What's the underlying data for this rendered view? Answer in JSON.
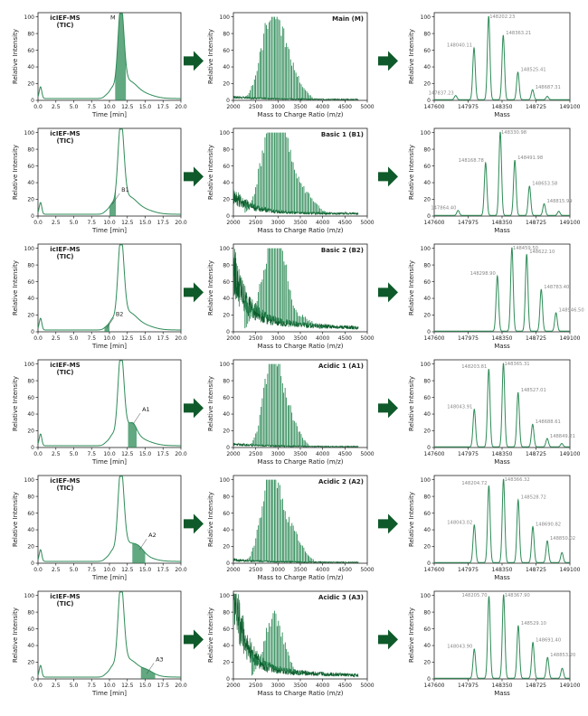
{
  "colors": {
    "trace": "#2e8b57",
    "trace_dark": "#0b5e2c",
    "fill": "#2e8b57",
    "arrow": "#0f5a2a",
    "axis": "#222222",
    "peak_label": "#888888"
  },
  "chart_data": [
    {
      "row": 0,
      "tic": {
        "type": "line",
        "title": "icIEF-MS",
        "subtitle": "(TIC)",
        "xlabel": "Time [min]",
        "ylabel": "Relative Intensity",
        "x_ticks": [
          "0.0",
          "2.5",
          "5.0",
          "7.5",
          "10.0",
          "12.5",
          "15.0",
          "17.5",
          "20.0"
        ],
        "y_ticks": [
          "0",
          "20",
          "40",
          "60",
          "80",
          "100"
        ],
        "xlim": [
          0,
          20
        ],
        "ylim": [
          0,
          105
        ],
        "marker_label": "M",
        "marker_x": 11.6,
        "marker_y": 100,
        "shade": [
          10.8,
          12.3
        ]
      },
      "ms": {
        "type": "line",
        "title": "Main (M)",
        "xlabel": "Mass to Charge Ratio (m/z)",
        "ylabel": "Relative Intensity",
        "x_ticks": [
          "2000",
          "2500",
          "3000",
          "3500",
          "4000",
          "4500",
          "5000"
        ],
        "y_ticks": [
          "0",
          "20",
          "40",
          "60",
          "80",
          "100"
        ],
        "xlim": [
          2000,
          5000
        ],
        "ylim": [
          0,
          105
        ],
        "profile": "main"
      },
      "deconv": {
        "type": "line",
        "xlabel": "Mass",
        "ylabel": "Relative Intensity",
        "x_ticks": [
          "147600",
          "147975",
          "148350",
          "148725",
          "149100"
        ],
        "y_ticks": [
          "0",
          "20",
          "40",
          "60",
          "80",
          "100"
        ],
        "xlim": [
          147600,
          149100
        ],
        "ylim": [
          0,
          105
        ],
        "peaks": [
          {
            "mass": 147837,
            "label": "147837.23",
            "y": 5
          },
          {
            "mass": 148040,
            "label": "148040.11",
            "y": 62
          },
          {
            "mass": 148202,
            "label": "148202.23",
            "y": 100
          },
          {
            "mass": 148363,
            "label": "148363.21",
            "y": 77
          },
          {
            "mass": 148525,
            "label": "148525.41",
            "y": 33
          },
          {
            "mass": 148687,
            "label": "148687.31",
            "y": 12
          },
          {
            "mass": 148850,
            "label": "",
            "y": 4
          }
        ]
      }
    },
    {
      "row": 1,
      "tic": {
        "type": "line",
        "title": "icIEF-MS",
        "subtitle": "(TIC)",
        "xlabel": "Time [min]",
        "ylabel": "Relative Intensity",
        "x_ticks": [
          "0.0",
          "2.5",
          "5.0",
          "7.5",
          "10.0",
          "12.5",
          "15.0",
          "17.5",
          "20.0"
        ],
        "y_ticks": [
          "0",
          "20",
          "40",
          "60",
          "80",
          "100"
        ],
        "xlim": [
          0,
          20
        ],
        "ylim": [
          0,
          105
        ],
        "marker_label": "B1",
        "marker_x": 10.4,
        "marker_y": 14,
        "shade": [
          10.0,
          10.9
        ]
      },
      "ms": {
        "type": "line",
        "title": "Basic 1 (B1)",
        "xlabel": "Mass to Charge Ratio (m/z)",
        "ylabel": "Relative Intensity",
        "x_ticks": [
          "2000",
          "2500",
          "3000",
          "3500",
          "4000",
          "4500",
          "5000"
        ],
        "y_ticks": [
          "0",
          "20",
          "40",
          "60",
          "80",
          "100"
        ],
        "xlim": [
          2000,
          5000
        ],
        "ylim": [
          0,
          105
        ],
        "profile": "basic1"
      },
      "deconv": {
        "type": "line",
        "xlabel": "Mass",
        "ylabel": "Relative Intensity",
        "x_ticks": [
          "147600",
          "147975",
          "148350",
          "148725",
          "149100"
        ],
        "y_ticks": [
          "0",
          "20",
          "40",
          "60",
          "80",
          "100"
        ],
        "xlim": [
          147600,
          149100
        ],
        "ylim": [
          0,
          105
        ],
        "peaks": [
          {
            "mass": 147864,
            "label": "147864.40",
            "y": 6
          },
          {
            "mass": 148168,
            "label": "148168.78",
            "y": 63
          },
          {
            "mass": 148330,
            "label": "148330.98",
            "y": 100
          },
          {
            "mass": 148491,
            "label": "148491.98",
            "y": 66
          },
          {
            "mass": 148653,
            "label": "148653.58",
            "y": 35
          },
          {
            "mass": 148815,
            "label": "148815.99",
            "y": 14
          },
          {
            "mass": 148977,
            "label": "",
            "y": 5
          }
        ]
      }
    },
    {
      "row": 2,
      "tic": {
        "type": "line",
        "title": "icIEF-MS",
        "subtitle": "(TIC)",
        "xlabel": "Time [min]",
        "ylabel": "Relative Intensity",
        "x_ticks": [
          "0.0",
          "2.5",
          "5.0",
          "7.5",
          "10.0",
          "12.5",
          "15.0",
          "17.5",
          "20.0"
        ],
        "y_ticks": [
          "0",
          "20",
          "40",
          "60",
          "80",
          "100"
        ],
        "xlim": [
          0,
          20
        ],
        "ylim": [
          0,
          105
        ],
        "marker_label": "B2",
        "marker_x": 9.6,
        "marker_y": 4,
        "shade": [
          9.3,
          10.0
        ]
      },
      "ms": {
        "type": "line",
        "title": "Basic 2 (B2)",
        "xlabel": "Mass to Charge Ratio (m/z)",
        "ylabel": "Relative Intensity",
        "x_ticks": [
          "2000",
          "2500",
          "3000",
          "3500",
          "4000",
          "4500",
          "5000"
        ],
        "y_ticks": [
          "0",
          "20",
          "40",
          "60",
          "80",
          "100"
        ],
        "xlim": [
          2000,
          5000
        ],
        "ylim": [
          0,
          105
        ],
        "profile": "basic2"
      },
      "deconv": {
        "type": "line",
        "xlabel": "Mass",
        "ylabel": "Relative Intensity",
        "x_ticks": [
          "147600",
          "147975",
          "148350",
          "148725",
          "149100"
        ],
        "y_ticks": [
          "0",
          "20",
          "40",
          "60",
          "80",
          "100"
        ],
        "xlim": [
          147600,
          149100
        ],
        "ylim": [
          0,
          105
        ],
        "peaks": [
          {
            "mass": 148298,
            "label": "148298.90",
            "y": 66
          },
          {
            "mass": 148459,
            "label": "148459.50",
            "y": 100
          },
          {
            "mass": 148622,
            "label": "148622.10",
            "y": 92
          },
          {
            "mass": 148783,
            "label": "148783.40",
            "y": 50
          },
          {
            "mass": 148946,
            "label": "148946.50",
            "y": 22
          }
        ]
      }
    },
    {
      "row": 3,
      "tic": {
        "type": "line",
        "title": "icIEF-MS",
        "subtitle": "(TIC)",
        "xlabel": "Time [min]",
        "ylabel": "Relative Intensity",
        "x_ticks": [
          "0.0",
          "2.5",
          "5.0",
          "7.5",
          "10.0",
          "12.5",
          "15.0",
          "17.5",
          "20.0"
        ],
        "y_ticks": [
          "0",
          "20",
          "40",
          "60",
          "80",
          "100"
        ],
        "xlim": [
          0,
          20
        ],
        "ylim": [
          0,
          105
        ],
        "marker_label": "A1",
        "marker_x": 13.3,
        "marker_y": 28,
        "shade": [
          12.6,
          13.8
        ]
      },
      "ms": {
        "type": "line",
        "title": "Acidic 1 (A1)",
        "xlabel": "Mass to Charge Ratio (m/z)",
        "ylabel": "Relative Intensity",
        "x_ticks": [
          "2000",
          "2500",
          "3000",
          "3500",
          "4000",
          "4500",
          "5000"
        ],
        "y_ticks": [
          "0",
          "20",
          "40",
          "60",
          "80",
          "100"
        ],
        "xlim": [
          2000,
          5000
        ],
        "ylim": [
          0,
          105
        ],
        "profile": "acidic1"
      },
      "deconv": {
        "type": "line",
        "xlabel": "Mass",
        "ylabel": "Relative Intensity",
        "x_ticks": [
          "147600",
          "147975",
          "148350",
          "148725",
          "149100"
        ],
        "y_ticks": [
          "0",
          "20",
          "40",
          "60",
          "80",
          "100"
        ],
        "xlim": [
          147600,
          149100
        ],
        "ylim": [
          0,
          105
        ],
        "peaks": [
          {
            "mass": 148043,
            "label": "148043.91",
            "y": 45
          },
          {
            "mass": 148203,
            "label": "148203.81",
            "y": 93
          },
          {
            "mass": 148365,
            "label": "148365.31",
            "y": 100
          },
          {
            "mass": 148527,
            "label": "148527.01",
            "y": 65
          },
          {
            "mass": 148688,
            "label": "148688.61",
            "y": 27
          },
          {
            "mass": 148849,
            "label": "148849.21",
            "y": 10
          },
          {
            "mass": 149010,
            "label": "",
            "y": 4
          }
        ]
      }
    },
    {
      "row": 4,
      "tic": {
        "type": "line",
        "title": "icIEF-MS",
        "subtitle": "(TIC)",
        "xlabel": "Time [min]",
        "ylabel": "Relative Intensity",
        "x_ticks": [
          "0.0",
          "2.5",
          "5.0",
          "7.5",
          "10.0",
          "12.5",
          "15.0",
          "17.5",
          "20.0"
        ],
        "y_ticks": [
          "0",
          "20",
          "40",
          "60",
          "80",
          "100"
        ],
        "xlim": [
          0,
          20
        ],
        "ylim": [
          0,
          105
        ],
        "marker_label": "A2",
        "marker_x": 14.2,
        "marker_y": 16,
        "shade": [
          13.2,
          15.0
        ]
      },
      "ms": {
        "type": "line",
        "title": "Acidic 2 (A2)",
        "xlabel": "Mass to Charge Ratio (m/z)",
        "ylabel": "Relative Intensity",
        "x_ticks": [
          "2000",
          "2500",
          "3000",
          "3500",
          "4000",
          "4500",
          "5000"
        ],
        "y_ticks": [
          "0",
          "20",
          "40",
          "60",
          "80",
          "100"
        ],
        "xlim": [
          2000,
          5000
        ],
        "ylim": [
          0,
          105
        ],
        "profile": "acidic2"
      },
      "deconv": {
        "type": "line",
        "xlabel": "Mass",
        "ylabel": "Relative Intensity",
        "x_ticks": [
          "147600",
          "147975",
          "148350",
          "148725",
          "149100"
        ],
        "y_ticks": [
          "0",
          "20",
          "40",
          "60",
          "80",
          "100"
        ],
        "xlim": [
          147600,
          149100
        ],
        "ylim": [
          0,
          105
        ],
        "peaks": [
          {
            "mass": 148043,
            "label": "148043.02",
            "y": 45
          },
          {
            "mass": 148204,
            "label": "148204.72",
            "y": 92
          },
          {
            "mass": 148366,
            "label": "148366.32",
            "y": 100
          },
          {
            "mass": 148528,
            "label": "148528.72",
            "y": 75
          },
          {
            "mass": 148690,
            "label": "148690.82",
            "y": 43
          },
          {
            "mass": 148850,
            "label": "148850.02",
            "y": 26
          },
          {
            "mass": 149012,
            "label": "",
            "y": 12
          }
        ]
      }
    },
    {
      "row": 5,
      "tic": {
        "type": "line",
        "title": "icIEF-MS",
        "subtitle": "(TIC)",
        "xlabel": "Time [min]",
        "ylabel": "Relative Intensity",
        "x_ticks": [
          "0.0",
          "2.5",
          "5.0",
          "7.5",
          "10.0",
          "12.5",
          "15.0",
          "17.5",
          "20.0"
        ],
        "y_ticks": [
          "0",
          "20",
          "40",
          "60",
          "80",
          "100"
        ],
        "xlim": [
          0,
          20
        ],
        "ylim": [
          0,
          105
        ],
        "marker_label": "A3",
        "marker_x": 15.2,
        "marker_y": 6,
        "shade": [
          14.4,
          16.4
        ]
      },
      "ms": {
        "type": "line",
        "title": "Acidic 3 (A3)",
        "xlabel": "Mass to Charge Ratio (m/z)",
        "ylabel": "Relative Intensity",
        "x_ticks": [
          "2000",
          "2500",
          "3000",
          "3500",
          "4000",
          "4500",
          "5000"
        ],
        "y_ticks": [
          "0",
          "20",
          "40",
          "60",
          "80",
          "100"
        ],
        "xlim": [
          2000,
          5000
        ],
        "ylim": [
          0,
          105
        ],
        "profile": "acidic3"
      },
      "deconv": {
        "type": "line",
        "xlabel": "Mass",
        "ylabel": "Relative Intensity",
        "x_ticks": [
          "147600",
          "147975",
          "148350",
          "148725",
          "149100"
        ],
        "y_ticks": [
          "0",
          "20",
          "40",
          "60",
          "80",
          "100"
        ],
        "xlim": [
          147600,
          149100
        ],
        "ylim": [
          0,
          105
        ],
        "peaks": [
          {
            "mass": 148043,
            "label": "148043.90",
            "y": 35
          },
          {
            "mass": 148205,
            "label": "148205.70",
            "y": 98
          },
          {
            "mass": 148367,
            "label": "148367.90",
            "y": 100
          },
          {
            "mass": 148529,
            "label": "148529.10",
            "y": 63
          },
          {
            "mass": 148691,
            "label": "148691.40",
            "y": 43
          },
          {
            "mass": 148853,
            "label": "148853.20",
            "y": 25
          },
          {
            "mass": 149015,
            "label": "",
            "y": 12
          }
        ]
      }
    }
  ]
}
